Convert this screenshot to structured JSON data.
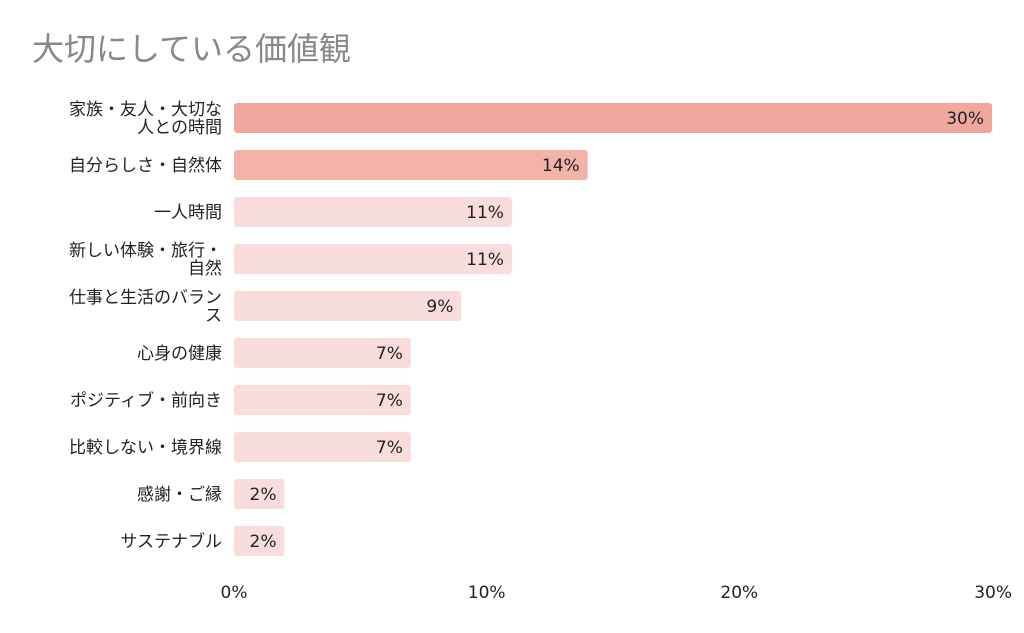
{
  "chart_data": {
    "type": "bar",
    "orientation": "horizontal",
    "title": "大切にしている価値観",
    "categories": [
      "家族・友人・大切な人との時間",
      "自分らしさ・自然体",
      "一人時間",
      "新しい体験・旅行・自然",
      "仕事と生活のバランス",
      "心身の健康",
      "ポジティブ・前向き",
      "比較しない・境界線",
      "感謝・ご縁",
      "サステナブル"
    ],
    "category_lines": [
      [
        "家族・友人・大切な",
        "人との時間"
      ],
      [
        "自分らしさ・自然体"
      ],
      [
        "一人時間"
      ],
      [
        "新しい体験・旅行・",
        "自然"
      ],
      [
        "仕事と生活のバラン",
        "ス"
      ],
      [
        "心身の健康"
      ],
      [
        "ポジティブ・前向き"
      ],
      [
        "比較しない・境界線"
      ],
      [
        "感謝・ご縁"
      ],
      [
        "サステナブル"
      ]
    ],
    "values": [
      30,
      14,
      11,
      11,
      9,
      7,
      7,
      7,
      2,
      2
    ],
    "value_labels": [
      "30%",
      "14%",
      "11%",
      "11%",
      "9%",
      "7%",
      "7%",
      "7%",
      "2%",
      "2%"
    ],
    "xlim": [
      0,
      30
    ],
    "x_ticks": [
      0,
      10,
      20,
      30
    ],
    "x_tick_labels": [
      "0%",
      "10%",
      "20%",
      "30%"
    ],
    "grid": false,
    "bar_colors": [
      "#f0a89e",
      "#f3b3a9",
      "#f9dcdc",
      "#f9dcdc",
      "#f9dcdc",
      "#f9dcdc",
      "#f9dcdc",
      "#f9dcdc",
      "#f9dcdc",
      "#f9dcdc"
    ],
    "text_color": "#222222",
    "title_color": "#888888"
  }
}
